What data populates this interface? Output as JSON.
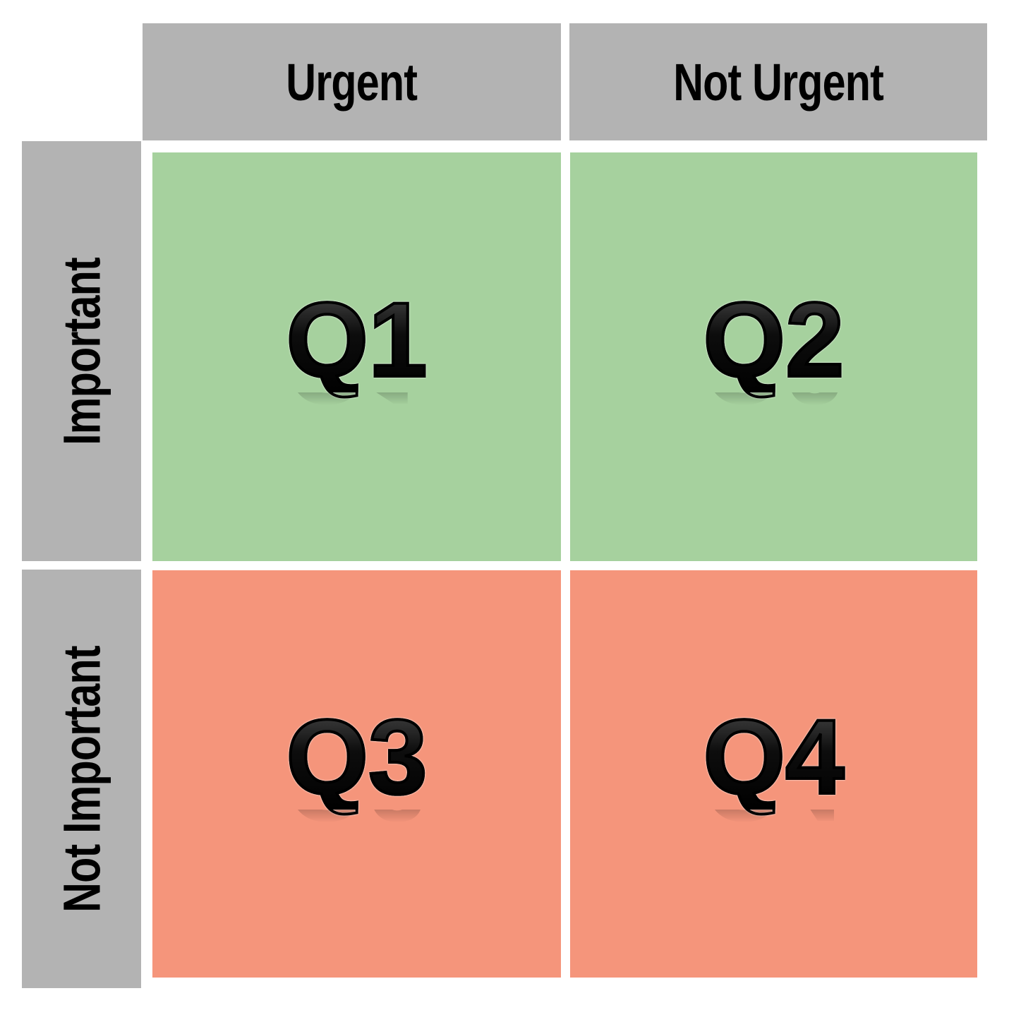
{
  "columns": {
    "urgent": "Urgent",
    "not_urgent": "Not Urgent"
  },
  "rows": {
    "important": "Important",
    "not_important": "Not Important"
  },
  "quadrants": {
    "q1": {
      "label": "Q1",
      "color": "#a6d19e"
    },
    "q2": {
      "label": "Q2",
      "color": "#a6d19e"
    },
    "q3": {
      "label": "Q3",
      "color": "#f5957b"
    },
    "q4": {
      "label": "Q4",
      "color": "#f5957b"
    }
  },
  "colors": {
    "header": "#b3b3b3",
    "important": "#a6d19e",
    "not_important": "#f5957b"
  }
}
